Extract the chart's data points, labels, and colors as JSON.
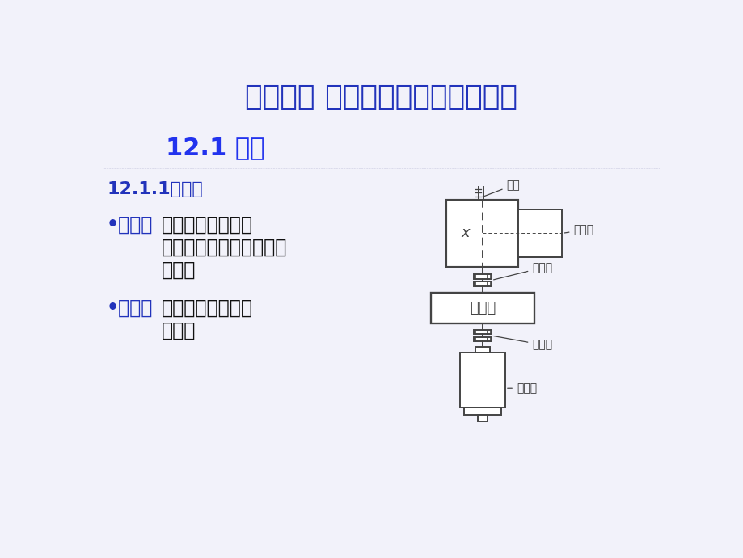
{
  "title": "第十二章 联轴器、离合器和制动器",
  "subtitle": "12.1 概述",
  "section": "12.1.1联轴器",
  "bullet1_key": "•功用：",
  "bullet1_text": "主要用作轴与轴之\n间的连接，以传递运动和\n转矩。",
  "bullet2_key": "•特点：",
  "bullet2_text": "停机时才能连接或\n分离。",
  "label_juantong": "卷筒",
  "label_shusongdai": "输送带",
  "label_lianzhouqi1": "联轴器",
  "label_jianshuqi": "减速器",
  "label_lianzhouqi2": "联轴器",
  "label_diandongji": "电动机",
  "title_color": "#2233bb",
  "subtitle_color": "#2233ee",
  "section_color": "#2233bb",
  "bullet_key_color": "#2233bb",
  "bullet_val_color": "#111111",
  "bg_color": "#f2f2fa",
  "line_color": "#444444",
  "diagram_label_color": "#333333",
  "white": "#ffffff"
}
